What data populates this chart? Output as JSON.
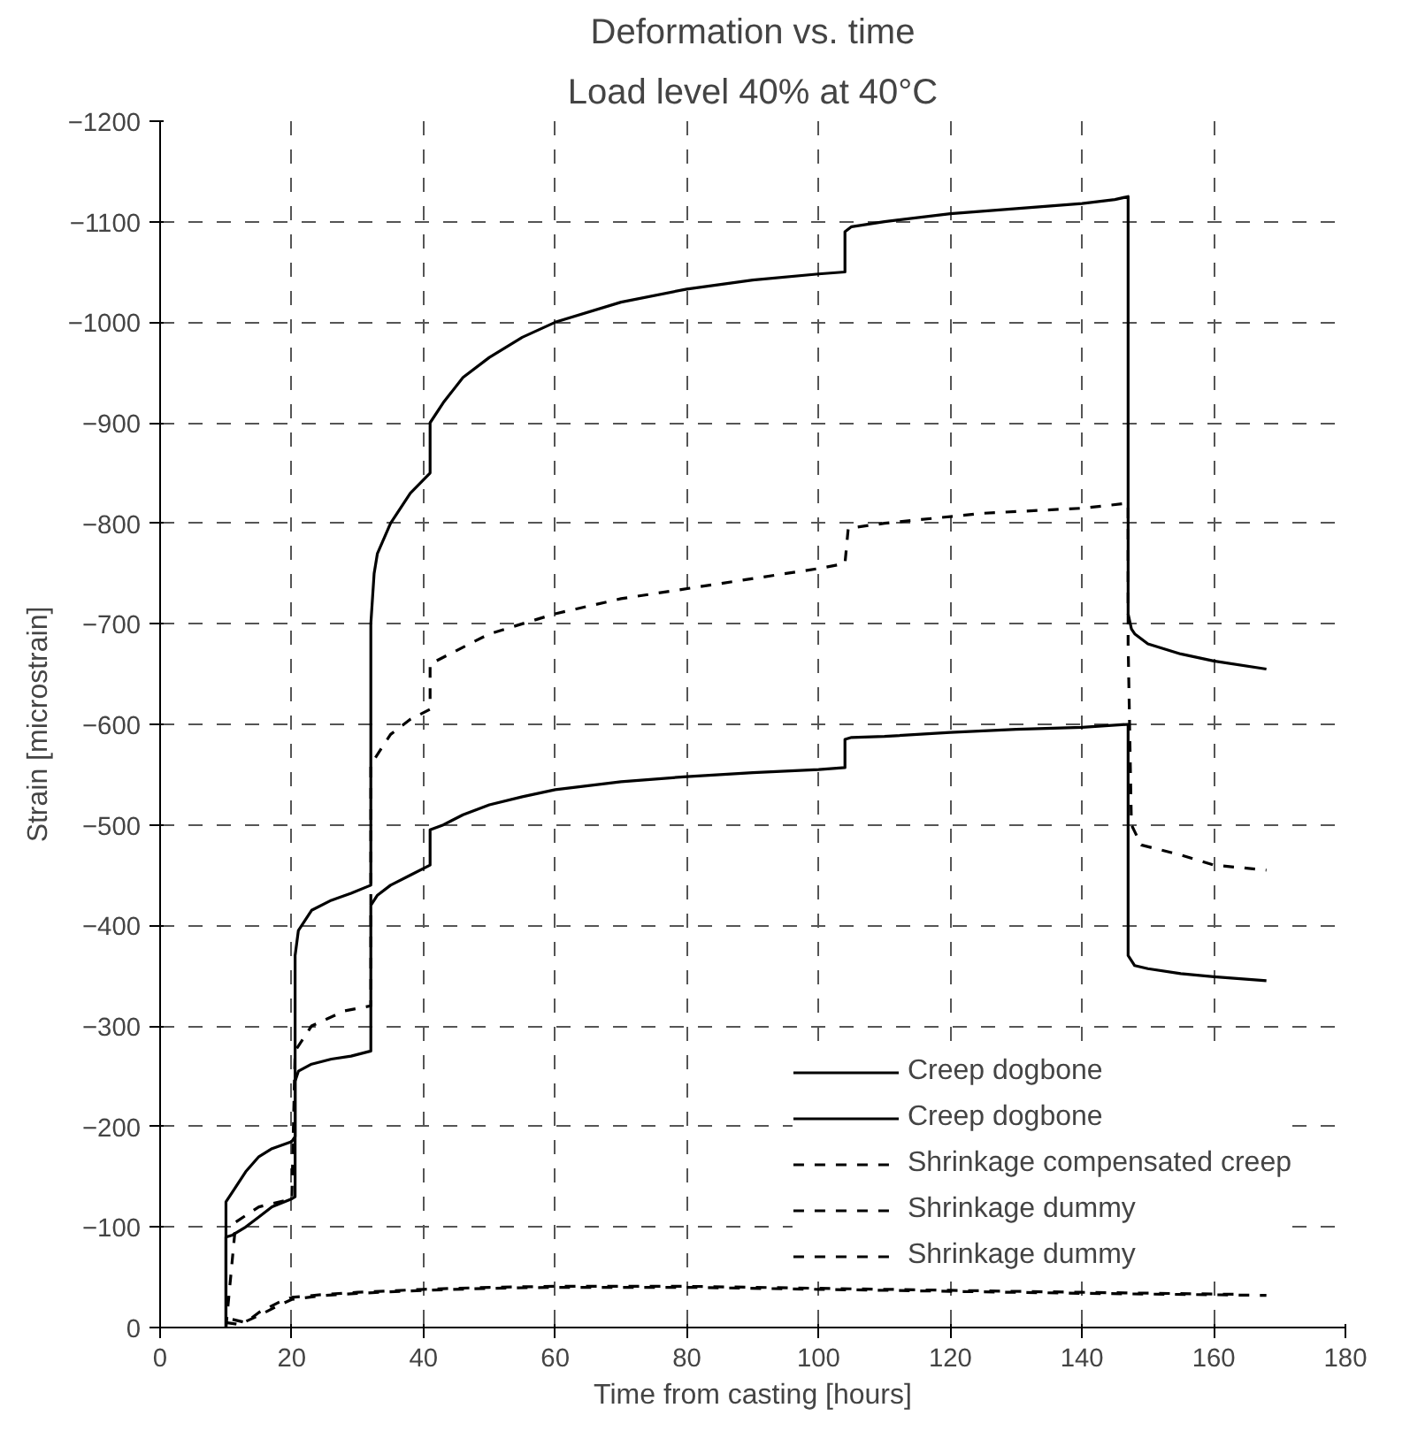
{
  "chart_data": {
    "type": "line",
    "title": "Deformation vs. time",
    "subtitle": "Load level 40% at 40°C",
    "xlabel": "Time from casting [hours]",
    "ylabel": "Strain [microstrain]",
    "xlim": [
      0,
      180
    ],
    "xticks": [
      0,
      20,
      40,
      60,
      80,
      100,
      120,
      140,
      160,
      180
    ],
    "ylim": [
      0,
      -1200
    ],
    "yticks": [
      0,
      -100,
      -200,
      -300,
      -400,
      -500,
      -600,
      -700,
      -800,
      -900,
      -1000,
      -1100,
      -1200
    ],
    "grid": true,
    "legend": "bottom right",
    "marker": "none",
    "series": [
      {
        "name": "Creep dogbone",
        "color": "#000000",
        "line_style": "solid",
        "x": [
          10,
          10,
          11,
          13,
          15,
          17,
          20,
          20.5,
          20.5,
          21,
          23,
          26,
          29,
          32,
          32,
          32.5,
          33,
          35,
          38,
          41,
          41,
          43,
          46,
          50,
          55,
          60,
          70,
          80,
          90,
          100,
          104,
          104,
          105,
          110,
          120,
          130,
          140,
          145,
          147,
          147,
          147.5,
          148,
          150,
          155,
          160,
          168
        ],
        "values": [
          0,
          -125,
          -135,
          -155,
          -170,
          -178,
          -185,
          -190,
          -370,
          -395,
          -415,
          -425,
          -432,
          -440,
          -700,
          -750,
          -770,
          -800,
          -830,
          -850,
          -900,
          -920,
          -945,
          -965,
          -985,
          -1000,
          -1020,
          -1033,
          -1042,
          -1048,
          -1050,
          -1090,
          -1095,
          -1100,
          -1108,
          -1113,
          -1118,
          -1122,
          -1125,
          -710,
          -695,
          -690,
          -680,
          -670,
          -663,
          -655
        ]
      },
      {
        "name": "Creep dogbone",
        "color": "#000000",
        "line_style": "solid",
        "x": [
          10,
          10,
          11,
          13,
          15,
          17,
          20,
          20.5,
          20.5,
          21,
          23,
          26,
          29,
          32,
          32,
          33,
          35,
          38,
          41,
          41,
          43,
          46,
          50,
          55,
          60,
          70,
          80,
          90,
          100,
          104,
          104,
          105,
          110,
          120,
          130,
          140,
          147,
          147,
          148,
          150,
          155,
          160,
          168
        ],
        "values": [
          0,
          -90,
          -92,
          -100,
          -110,
          -120,
          -128,
          -130,
          -245,
          -255,
          -262,
          -267,
          -270,
          -275,
          -420,
          -430,
          -440,
          -450,
          -460,
          -495,
          -500,
          -510,
          -520,
          -528,
          -535,
          -543,
          -548,
          -552,
          -555,
          -557,
          -585,
          -587,
          -588,
          -592,
          -595,
          -597,
          -600,
          -370,
          -360,
          -357,
          -352,
          -349,
          -345
        ]
      },
      {
        "name": "Shrinkage compensated creep",
        "color": "#000000",
        "line_style": "dashed",
        "x": [
          10,
          11.5,
          15,
          20,
          20.5,
          23,
          28,
          32,
          32,
          35,
          38,
          41,
          41,
          50,
          60,
          70,
          85,
          100,
          104,
          104.5,
          110,
          125,
          140,
          147,
          147,
          147.5,
          149,
          155,
          160,
          168
        ],
        "values": [
          0,
          -105,
          -120,
          -128,
          -275,
          -300,
          -315,
          -320,
          -560,
          -590,
          -605,
          -615,
          -660,
          -690,
          -710,
          -725,
          -740,
          -755,
          -760,
          -795,
          -800,
          -810,
          -815,
          -820,
          -680,
          -500,
          -480,
          -470,
          -460,
          -455
        ]
      },
      {
        "name": "Shrinkage dummy",
        "color": "#000000",
        "line_style": "dashed",
        "x": [
          10,
          12,
          15,
          18,
          20,
          25,
          30,
          40,
          50,
          60,
          80,
          100,
          120,
          140,
          168
        ],
        "values": [
          -5,
          -3,
          -12,
          -22,
          -28,
          -32,
          -34,
          -37,
          -39,
          -40,
          -40,
          -38,
          -36,
          -34,
          -32
        ]
      },
      {
        "name": "Shrinkage dummy",
        "color": "#000000",
        "line_style": "dashed",
        "x": [
          11,
          13,
          15,
          18,
          20,
          25,
          30,
          40,
          50,
          60,
          80,
          100,
          120,
          140,
          164
        ],
        "values": [
          -8,
          -5,
          -15,
          -25,
          -30,
          -33,
          -35,
          -38,
          -40,
          -41,
          -41,
          -39,
          -37,
          -35,
          -33
        ]
      }
    ]
  }
}
